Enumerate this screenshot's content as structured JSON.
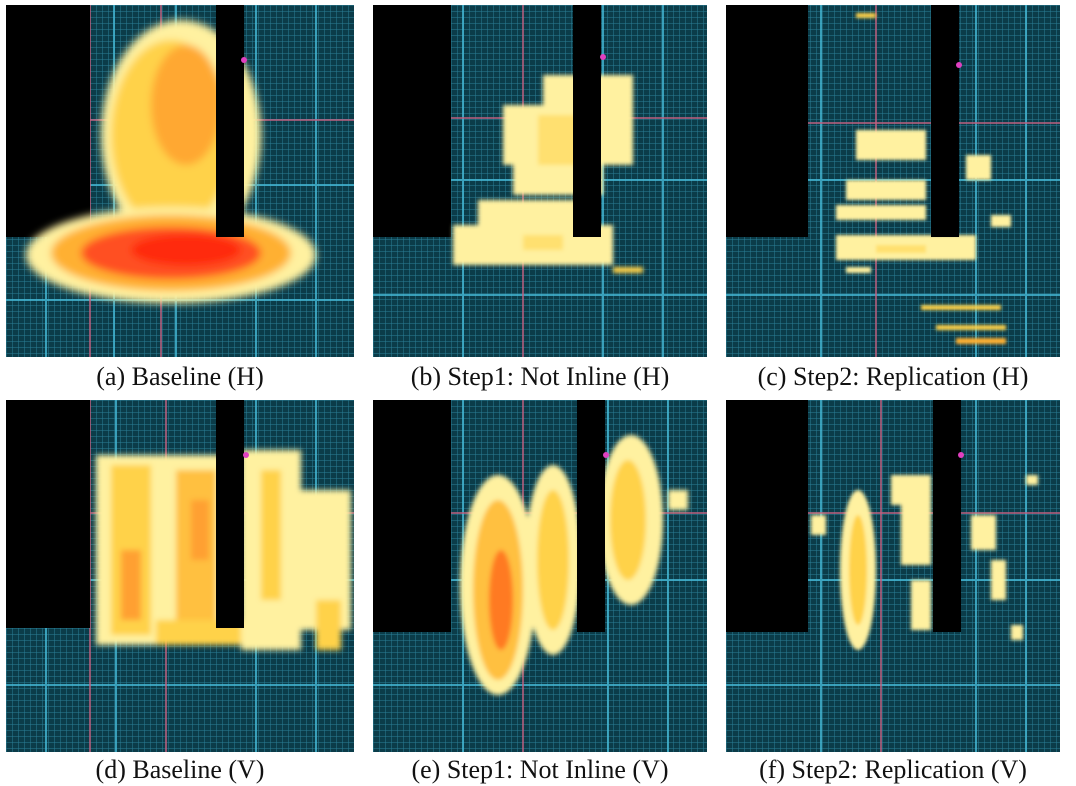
{
  "panels": [
    {
      "id": "a",
      "caption": "(a) Baseline (H)",
      "direction": "H",
      "stage": "baseline",
      "congestion": "high"
    },
    {
      "id": "b",
      "caption": "(b) Step1: Not Inline (H)",
      "direction": "H",
      "stage": "not-inline",
      "congestion": "medium"
    },
    {
      "id": "c",
      "caption": "(c) Step2: Replication (H)",
      "direction": "H",
      "stage": "replication",
      "congestion": "low"
    },
    {
      "id": "d",
      "caption": "(d) Baseline (V)",
      "direction": "V",
      "stage": "baseline",
      "congestion": "high"
    },
    {
      "id": "e",
      "caption": "(e) Step1: Not Inline (V)",
      "direction": "V",
      "stage": "not-inline",
      "congestion": "medium"
    },
    {
      "id": "f",
      "caption": "(f) Step2: Replication (V)",
      "direction": "V",
      "stage": "replication",
      "congestion": "low"
    }
  ],
  "colors": {
    "fabric": "#0b3c49",
    "grid_line": "#3aa6c4",
    "block": "#000000",
    "heat_low": "#fff1a0",
    "heat_mid": "#ffd24a",
    "heat_high": "#ff9a1a",
    "heat_max": "#ff2a10",
    "marker": "#e040c0"
  }
}
